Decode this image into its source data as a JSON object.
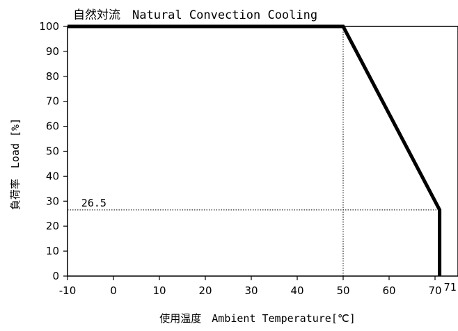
{
  "chart_data": {
    "type": "line",
    "title": "自然対流　Natural Convection Cooling",
    "xlabel": "使用温度　Ambient Temperature[℃]",
    "ylabel": "負荷率　Load [%]",
    "xlim": [
      -10,
      80
    ],
    "ylim": [
      0,
      100
    ],
    "x_ticks": [
      "-10",
      "0",
      "10",
      "20",
      "30",
      "40",
      "50",
      "60",
      "70"
    ],
    "y_ticks": [
      "0",
      "10",
      "20",
      "30",
      "40",
      "50",
      "60",
      "70",
      "80",
      "90",
      "100"
    ],
    "grid": false,
    "series": [
      {
        "x": [
          -10,
          50,
          71,
          71
        ],
        "y": [
          100,
          100,
          26.5,
          0
        ],
        "color": "#000000"
      }
    ],
    "guides": [
      {
        "x": [
          50,
          50
        ],
        "y": [
          0,
          100
        ]
      },
      {
        "x": [
          -10,
          71
        ],
        "y": [
          26.5,
          26.5
        ]
      }
    ],
    "annotations": [
      {
        "text": "26.5",
        "x": -7,
        "y": 26.5
      },
      {
        "text": "71",
        "x": 71,
        "y": 0
      }
    ]
  }
}
